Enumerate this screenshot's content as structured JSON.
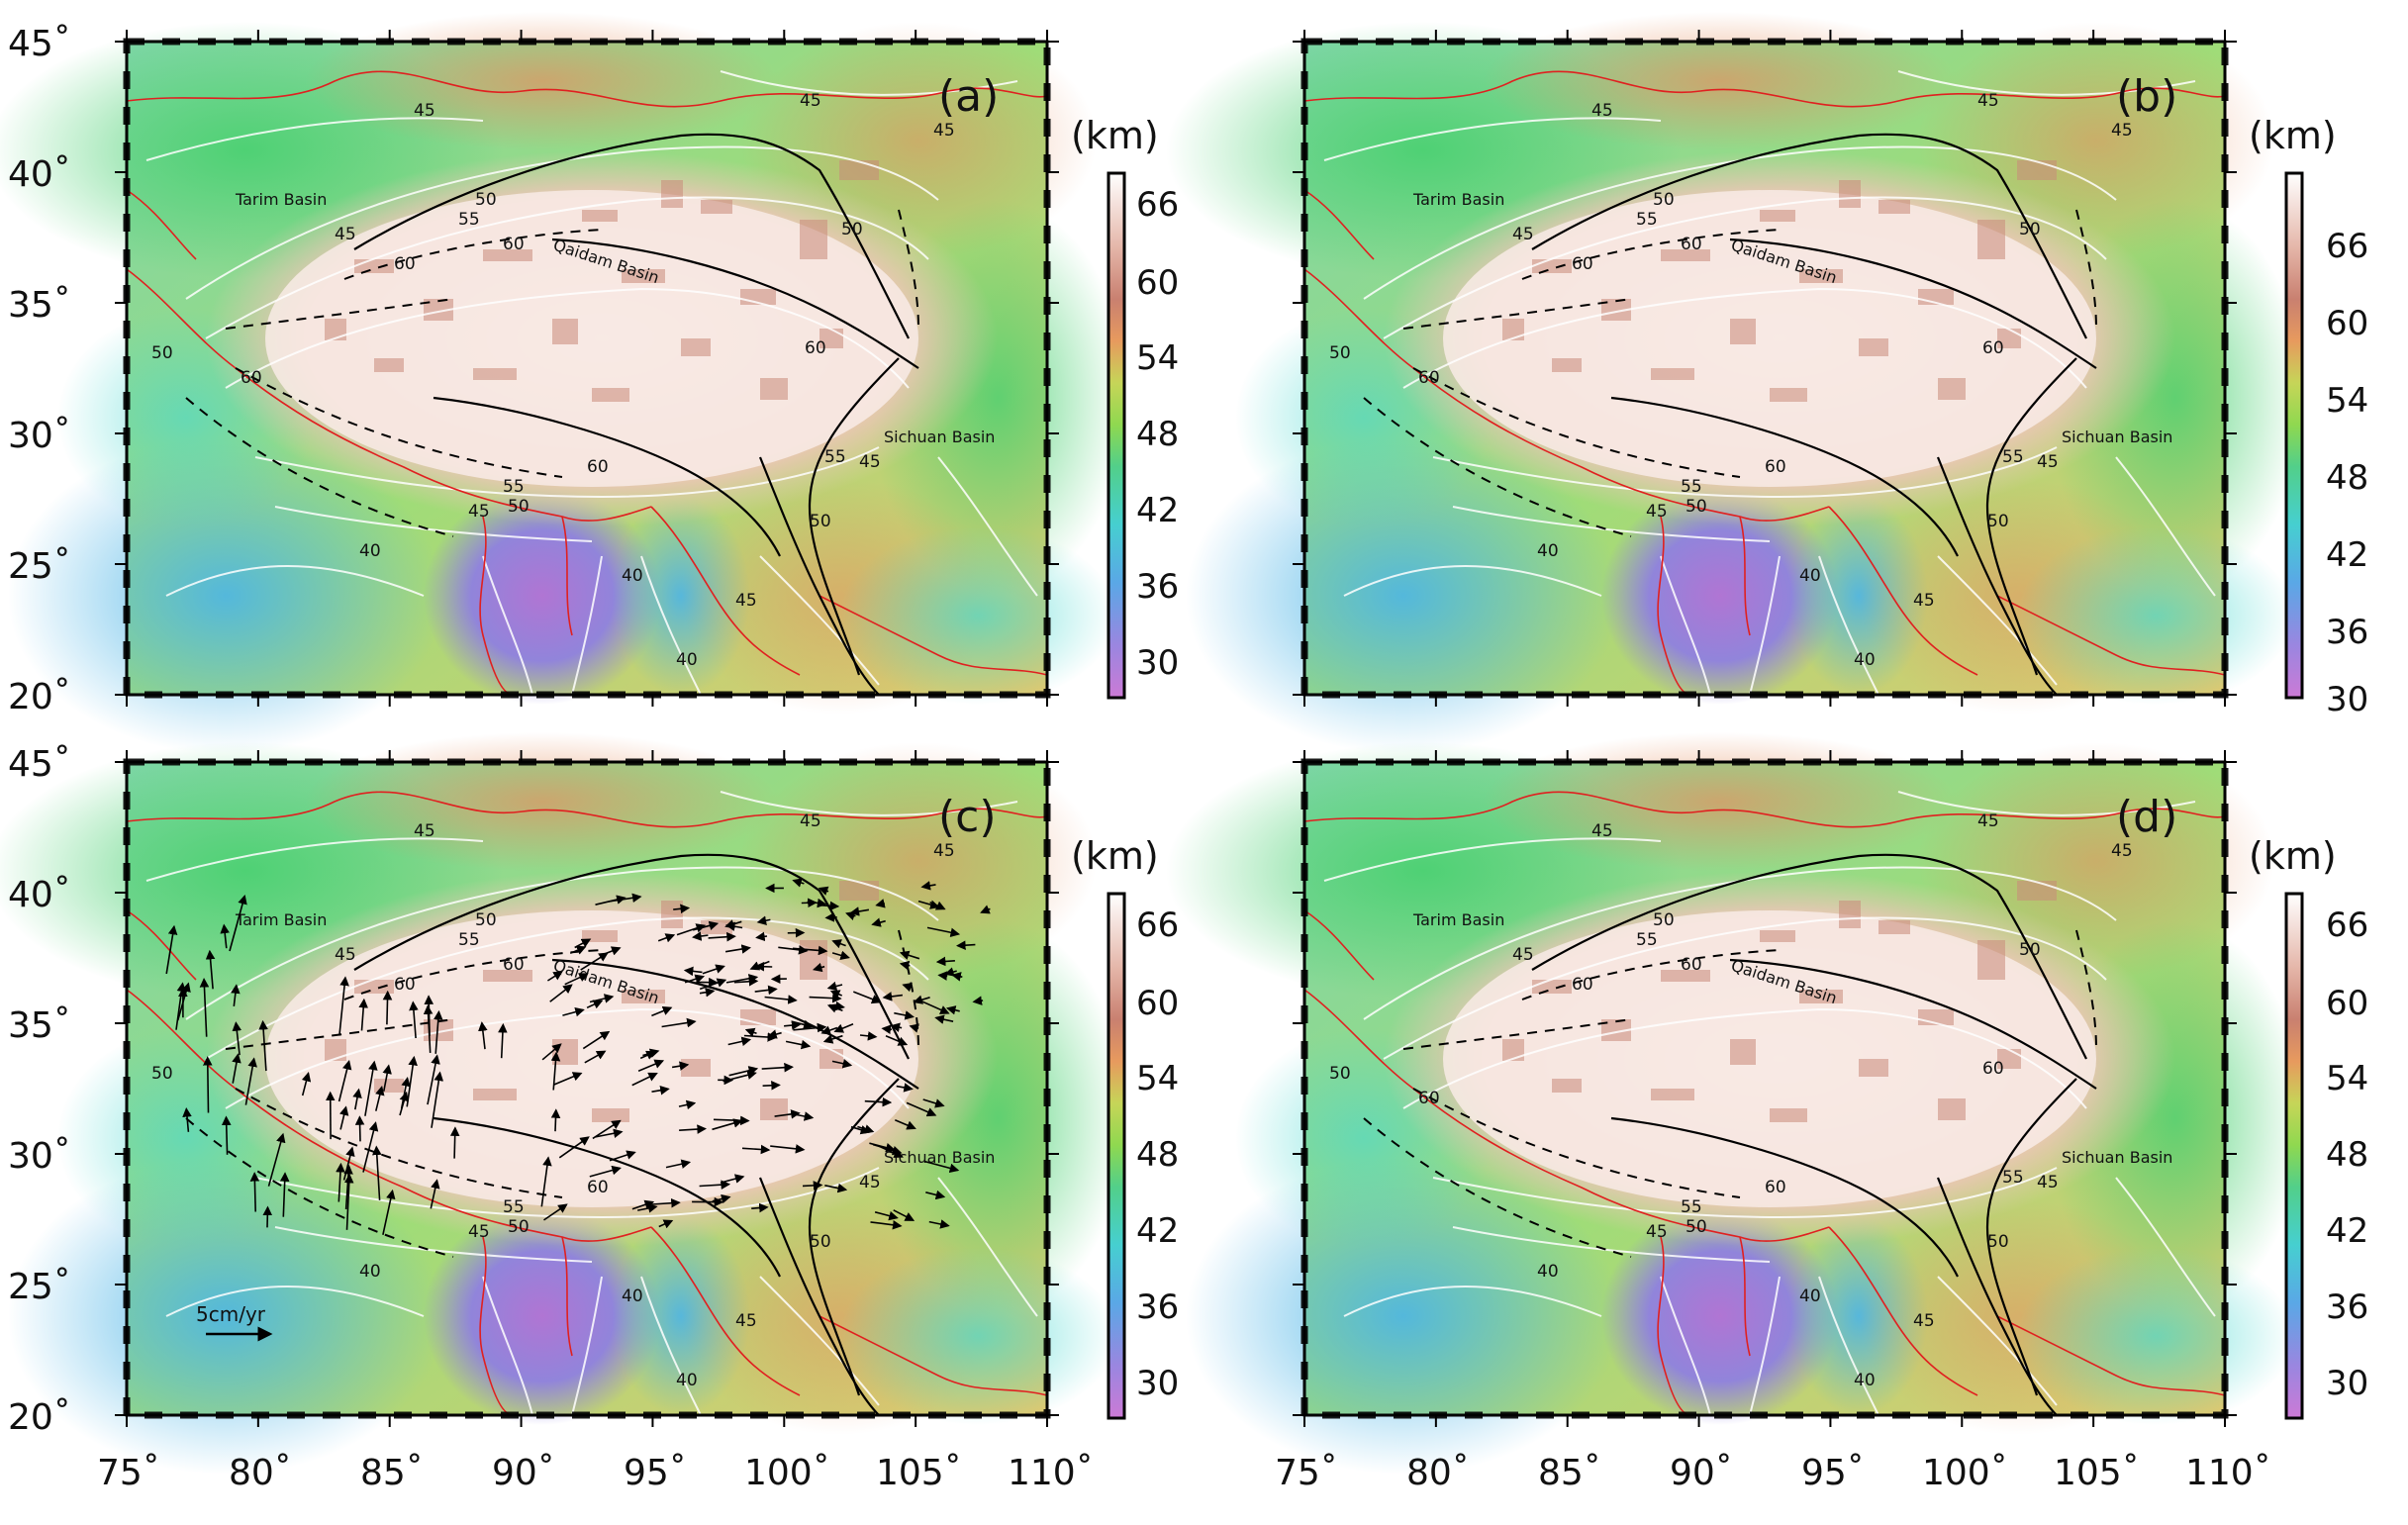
{
  "figure": {
    "unit": "(km)",
    "x_ticks": [
      "75˚",
      "80˚",
      "85˚",
      "90˚",
      "95˚",
      "100˚",
      "105˚",
      "110˚"
    ],
    "y_ticks": [
      "45˚",
      "40˚",
      "35˚",
      "30˚",
      "25˚",
      "20˚"
    ],
    "colorbar": {
      "ticks_a": [
        "66",
        "60",
        "54",
        "48",
        "42",
        "36",
        "30"
      ],
      "ticks_b": [
        "66",
        "60",
        "54",
        "48",
        "42",
        "36",
        "30"
      ],
      "colors": [
        "#cc7ad6",
        "#9a86e0",
        "#5aa8e6",
        "#46cfd0",
        "#52cf8a",
        "#8fd850",
        "#c6d558",
        "#e79a5e",
        "#c98070",
        "#e5b7aa",
        "#ffffff"
      ]
    },
    "basins": {
      "tarim": "Tarim Basin",
      "qaidam": "Qaidam Basin",
      "sichuan": "Sichuan Basin"
    },
    "contour_labels": [
      "45",
      "45",
      "45",
      "50",
      "55",
      "50",
      "45",
      "60",
      "60",
      "60",
      "60",
      "55",
      "50",
      "60",
      "55",
      "45",
      "50",
      "45",
      "45",
      "40",
      "40",
      "40",
      "40",
      "45",
      "50",
      "50",
      "55",
      "60"
    ],
    "velocity_scale_label": "5cm/yr",
    "panels": [
      {
        "tag": "(a)",
        "has_vectors": false
      },
      {
        "tag": "(b)",
        "has_vectors": false
      },
      {
        "tag": "(c)",
        "has_vectors": true
      },
      {
        "tag": "(d)",
        "has_vectors": false
      }
    ]
  }
}
